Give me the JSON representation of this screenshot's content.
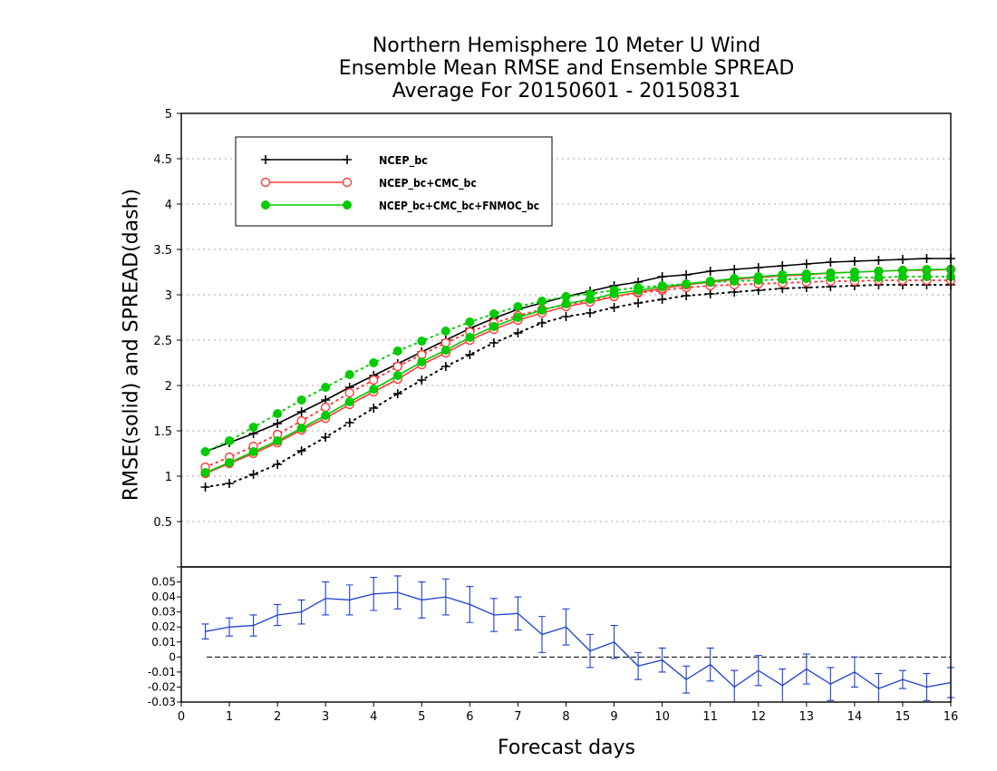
{
  "chart_data": [
    {
      "type": "line",
      "title_lines": [
        "Northern Hemisphere 10 Meter U Wind",
        "Ensemble Mean RMSE and Ensemble SPREAD",
        "Average For 20150601 - 20150831"
      ],
      "ylabel": "RMSE(solid) and SPREAD(dash)",
      "xlim": [
        0,
        16
      ],
      "ylim": [
        0,
        5
      ],
      "yticks": [
        0,
        0.5,
        1,
        1.5,
        2,
        2.5,
        3,
        3.5,
        4,
        4.5,
        5
      ],
      "ytick_labels": [
        "0",
        "0.5",
        "1",
        "1.5",
        "2",
        "2.5",
        "3",
        "3.5",
        "4",
        "4.5",
        "5"
      ],
      "grid": true,
      "legend_position": "top-left",
      "x": [
        0.5,
        1,
        1.5,
        2,
        2.5,
        3,
        3.5,
        4,
        4.5,
        5,
        5.5,
        6,
        6.5,
        7,
        7.5,
        8,
        8.5,
        9,
        9.5,
        10,
        10.5,
        11,
        11.5,
        12,
        12.5,
        13,
        13.5,
        14,
        14.5,
        15,
        15.5,
        16
      ],
      "series": [
        {
          "name": "NCEP_bc",
          "color": "#000000",
          "marker": "plus",
          "rmse": [
            1.27,
            1.37,
            1.47,
            1.58,
            1.71,
            1.84,
            1.98,
            2.11,
            2.24,
            2.37,
            2.5,
            2.63,
            2.74,
            2.84,
            2.91,
            2.98,
            3.04,
            3.1,
            3.14,
            3.2,
            3.22,
            3.26,
            3.28,
            3.3,
            3.32,
            3.34,
            3.36,
            3.37,
            3.38,
            3.39,
            3.4,
            3.4
          ],
          "spread": [
            0.88,
            0.92,
            1.02,
            1.13,
            1.28,
            1.43,
            1.59,
            1.75,
            1.91,
            2.06,
            2.21,
            2.34,
            2.47,
            2.58,
            2.69,
            2.76,
            2.8,
            2.86,
            2.91,
            2.95,
            2.99,
            3.01,
            3.03,
            3.05,
            3.07,
            3.08,
            3.09,
            3.1,
            3.11,
            3.11,
            3.11,
            3.11
          ]
        },
        {
          "name": "NCEP_bc+CMC_bc",
          "color": "#ff3b3b",
          "marker": "open-circle",
          "rmse": [
            1.03,
            1.14,
            1.25,
            1.37,
            1.51,
            1.64,
            1.79,
            1.93,
            2.07,
            2.23,
            2.36,
            2.5,
            2.62,
            2.72,
            2.8,
            2.87,
            2.92,
            2.98,
            3.03,
            3.07,
            3.11,
            3.14,
            3.17,
            3.19,
            3.21,
            3.22,
            3.24,
            3.25,
            3.26,
            3.27,
            3.27,
            3.28
          ],
          "spread": [
            1.1,
            1.21,
            1.33,
            1.46,
            1.61,
            1.76,
            1.92,
            2.06,
            2.21,
            2.34,
            2.47,
            2.59,
            2.69,
            2.77,
            2.84,
            2.89,
            2.94,
            2.98,
            3.02,
            3.05,
            3.08,
            3.1,
            3.11,
            3.12,
            3.13,
            3.14,
            3.15,
            3.15,
            3.16,
            3.16,
            3.16,
            3.16
          ]
        },
        {
          "name": "NCEP_bc+CMC_bc+FNMOC_bc",
          "color": "#00cc00",
          "marker": "filled-circle",
          "rmse": [
            1.04,
            1.15,
            1.27,
            1.39,
            1.53,
            1.67,
            1.82,
            1.96,
            2.11,
            2.26,
            2.39,
            2.53,
            2.65,
            2.75,
            2.83,
            2.9,
            2.95,
            3.01,
            3.05,
            3.09,
            3.12,
            3.15,
            3.18,
            3.2,
            3.22,
            3.23,
            3.24,
            3.25,
            3.26,
            3.27,
            3.28,
            3.28
          ],
          "spread": [
            1.27,
            1.39,
            1.54,
            1.69,
            1.84,
            1.98,
            2.12,
            2.25,
            2.38,
            2.49,
            2.6,
            2.7,
            2.79,
            2.87,
            2.93,
            2.98,
            3.01,
            3.05,
            3.08,
            3.1,
            3.12,
            3.14,
            3.15,
            3.16,
            3.17,
            3.18,
            3.19,
            3.19,
            3.19,
            3.2,
            3.2,
            3.2
          ]
        }
      ]
    },
    {
      "type": "line",
      "xlabel": "Forecast days",
      "xlim": [
        0,
        16
      ],
      "xticks": [
        0,
        1,
        2,
        3,
        4,
        5,
        6,
        7,
        8,
        9,
        10,
        11,
        12,
        13,
        14,
        15,
        16
      ],
      "xtick_labels": [
        "0",
        "1",
        "2",
        "3",
        "4",
        "5",
        "6",
        "7",
        "8",
        "9",
        "10",
        "11",
        "12",
        "13",
        "14",
        "15",
        "16"
      ],
      "ylim": [
        -0.03,
        0.06
      ],
      "yticks": [
        -0.03,
        -0.02,
        -0.01,
        0,
        0.01,
        0.02,
        0.03,
        0.04,
        0.05
      ],
      "ytick_labels": [
        "-0.03",
        "-0.02",
        "-0.01",
        "0",
        "0.01",
        "0.02",
        "0.03",
        "0.04",
        "0.05"
      ],
      "zero_line": "dashed",
      "series": [
        {
          "color": "#1f3fd1",
          "x": [
            0.5,
            1,
            1.5,
            2,
            2.5,
            3,
            3.5,
            4,
            4.5,
            5,
            5.5,
            6,
            6.5,
            7,
            7.5,
            8,
            8.5,
            9,
            9.5,
            10,
            10.5,
            11,
            11.5,
            12,
            12.5,
            13,
            13.5,
            14,
            14.5,
            15,
            15.5,
            16
          ],
          "values": [
            0.017,
            0.02,
            0.021,
            0.028,
            0.03,
            0.039,
            0.038,
            0.042,
            0.043,
            0.038,
            0.04,
            0.035,
            0.028,
            0.029,
            0.015,
            0.02,
            0.004,
            0.01,
            -0.006,
            -0.002,
            -0.015,
            -0.005,
            -0.02,
            -0.009,
            -0.019,
            -0.008,
            -0.018,
            -0.01,
            -0.021,
            -0.015,
            -0.02,
            -0.017
          ],
          "error": [
            0.005,
            0.006,
            0.007,
            0.007,
            0.008,
            0.011,
            0.01,
            0.011,
            0.011,
            0.012,
            0.012,
            0.012,
            0.011,
            0.011,
            0.012,
            0.012,
            0.011,
            0.011,
            0.009,
            0.008,
            0.009,
            0.011,
            0.011,
            0.01,
            0.011,
            0.01,
            0.011,
            0.01,
            0.01,
            0.006,
            0.009,
            0.01
          ]
        }
      ]
    }
  ]
}
